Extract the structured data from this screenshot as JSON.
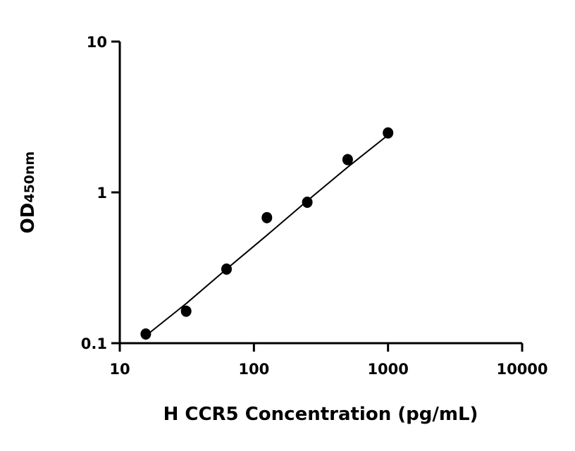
{
  "chart_data": {
    "type": "scatter",
    "xlabel": "H CCR5 Concentration (pg/mL)",
    "ylabel_main": "OD",
    "ylabel_sub": "450nm",
    "x_scale": "log",
    "y_scale": "log",
    "xlim": [
      10,
      10000
    ],
    "ylim": [
      0.1,
      10
    ],
    "x_ticks": [
      10,
      100,
      1000,
      10000
    ],
    "x_tick_labels": [
      "10",
      "100",
      "1000",
      "10000"
    ],
    "y_ticks": [
      0.1,
      1,
      10
    ],
    "y_tick_labels": [
      "0.1",
      "1",
      "10"
    ],
    "grid": false,
    "series": [
      {
        "x": [
          15.625,
          31.25,
          62.5,
          125,
          250,
          500,
          1000
        ],
        "y": [
          0.115,
          0.163,
          0.31,
          0.68,
          0.86,
          1.65,
          2.48
        ]
      }
    ],
    "fit_curve": {
      "x": [
        15.625,
        31.25,
        62.5,
        125,
        250,
        500,
        1000
      ],
      "y": [
        0.112,
        0.183,
        0.31,
        0.52,
        0.88,
        1.47,
        2.4
      ]
    },
    "colors": {
      "marker": "#000000",
      "line": "#000000",
      "axis": "#000000"
    }
  }
}
